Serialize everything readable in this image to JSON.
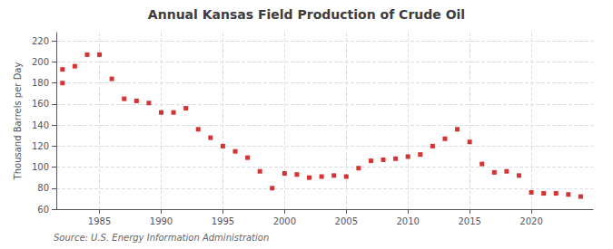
{
  "chart_data": {
    "type": "scatter",
    "title": "Annual Kansas Field Production of Crude Oil",
    "ylabel": "Thousand Barrels per Day",
    "source": "Source: U.S. Energy Information Administration",
    "series": [
      {
        "x": [
          1982
        ],
        "values": [
          180
        ],
        "color": "#cc0000",
        "marker": "square"
      },
      {
        "x": [
          1982,
          1983,
          1984,
          1985,
          1986,
          1987,
          1988,
          1989,
          1990,
          1991,
          1992,
          1993,
          1994,
          1995,
          1996,
          1997,
          1998,
          1999,
          2000,
          2001,
          2002,
          2003,
          2004,
          2005,
          2006,
          2007,
          2008,
          2009,
          2010,
          2011,
          2012,
          2013,
          2014,
          2015,
          2016,
          2017,
          2018,
          2019,
          2020,
          2021,
          2022,
          2023,
          2024
        ],
        "values": [
          193,
          196,
          207,
          207,
          184,
          165,
          163,
          161,
          152,
          152,
          156,
          136,
          128,
          120,
          115,
          109,
          96,
          80,
          94,
          93,
          90,
          91,
          92,
          91,
          99,
          106,
          107,
          108,
          110,
          112,
          120,
          127,
          136,
          124,
          103,
          95,
          96,
          92,
          76,
          75,
          75,
          74,
          72
        ],
        "color": "#cc0000",
        "marker": "square"
      }
    ],
    "xlim": [
      1981.5,
      2025
    ],
    "xticks": [
      1985,
      1990,
      1995,
      2000,
      2005,
      2010,
      2015,
      2020
    ],
    "ylim": [
      60,
      228
    ],
    "yticks": [
      60,
      80,
      100,
      120,
      140,
      160,
      180,
      200,
      220
    ],
    "grid": true
  }
}
